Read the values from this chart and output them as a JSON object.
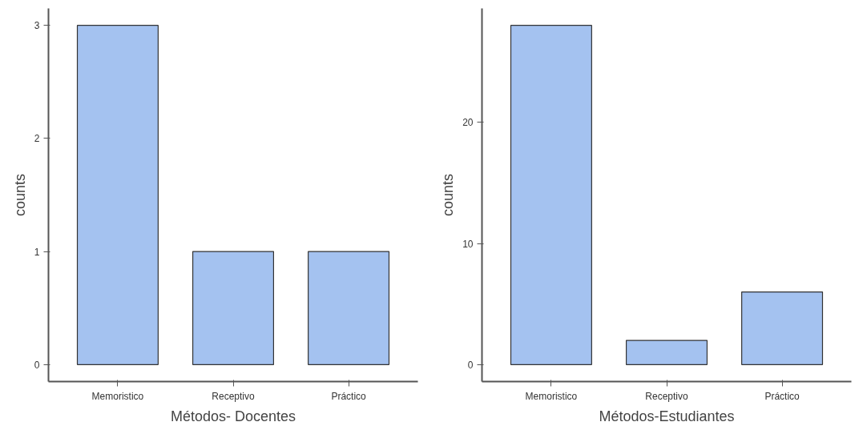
{
  "chart_data": [
    {
      "type": "bar",
      "xlabel": "Métodos- Docentes",
      "ylabel": "counts",
      "categories": [
        "Memoristico",
        "Receptivo",
        "Práctico"
      ],
      "values": [
        3,
        1,
        1
      ],
      "color": "#a4c2f0",
      "ylim": [
        -0.15,
        3.15
      ],
      "yticks": [
        0,
        1,
        2,
        3
      ],
      "grid": false
    },
    {
      "type": "bar",
      "xlabel": "Métodos-Estudiantes",
      "ylabel": "counts",
      "categories": [
        "Memoristico",
        "Receptivo",
        "Práctico"
      ],
      "values": [
        28,
        2,
        6
      ],
      "color": "#a4c2f0",
      "ylim": [
        -1.4,
        29.4
      ],
      "yticks": [
        0,
        10,
        20
      ],
      "grid": false
    }
  ]
}
